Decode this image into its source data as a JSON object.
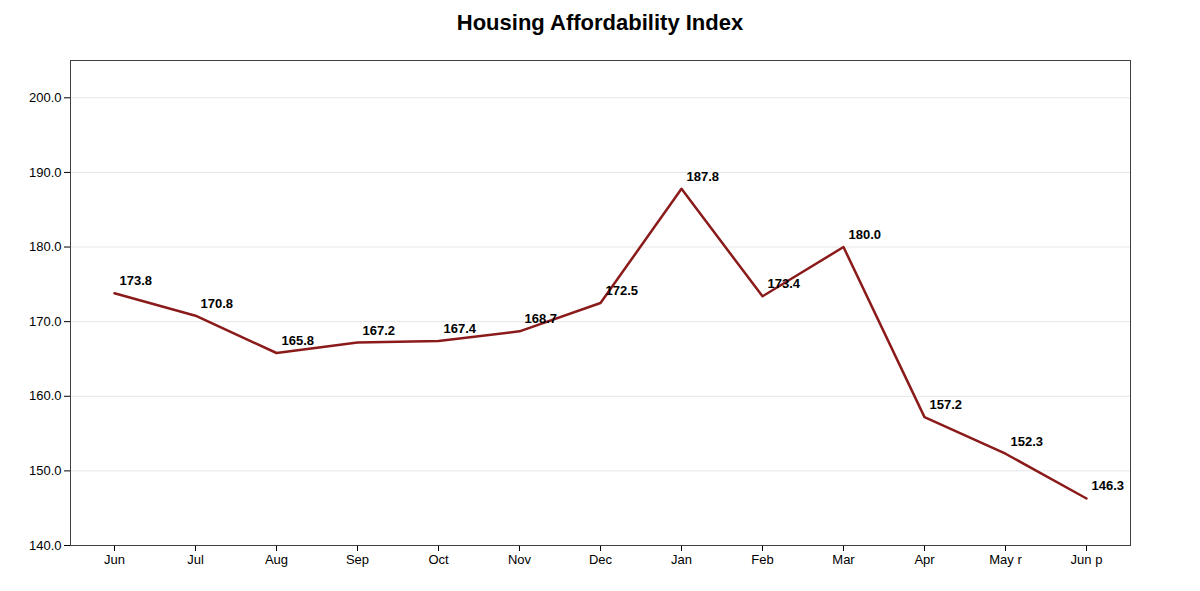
{
  "chart_data": {
    "type": "line",
    "title": "Housing Affordability Index",
    "categories": [
      "Jun",
      "Jul",
      "Aug",
      "Sep",
      "Oct",
      "Nov",
      "Dec",
      "Jan",
      "Feb",
      "Mar",
      "Apr",
      "May r",
      "Jun p"
    ],
    "values": [
      173.8,
      170.8,
      165.8,
      167.2,
      167.4,
      168.7,
      172.5,
      187.8,
      173.4,
      180.0,
      157.2,
      152.3,
      146.3
    ],
    "value_labels": [
      "173.8",
      "170.8",
      "165.8",
      "167.2",
      "167.4",
      "168.7",
      "172.5",
      "187.8",
      "173.4",
      "180.0",
      "157.2",
      "152.3",
      "146.3"
    ],
    "color": "#8B1A1A",
    "ylim": [
      140.0,
      205.0
    ],
    "yticks": [
      {
        "value": 140,
        "label": "140.0"
      },
      {
        "value": 150,
        "label": "150.0"
      },
      {
        "value": 160,
        "label": "160.0"
      },
      {
        "value": 170,
        "label": "170.0"
      },
      {
        "value": 180,
        "label": "180.0"
      },
      {
        "value": 190,
        "label": "190.0"
      },
      {
        "value": 200,
        "label": "200.0"
      }
    ],
    "grid": true,
    "data_labels": true
  }
}
